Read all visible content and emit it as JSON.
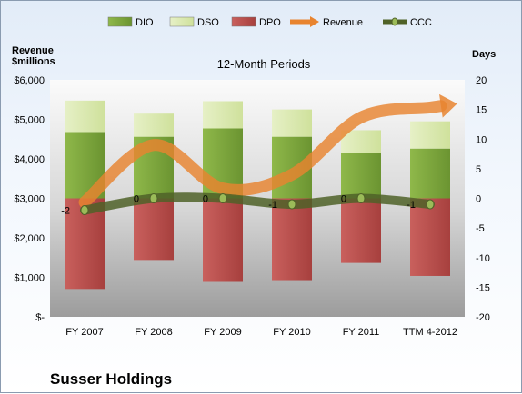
{
  "chart_data": {
    "type": "bar",
    "title": "12-Month Periods",
    "company": "Susser Holdings",
    "left_axis_title": [
      "Revenue",
      "$millions"
    ],
    "right_axis_title": "Days",
    "left_ticks": [
      "$-",
      "$1,000",
      "$2,000",
      "$3,000",
      "$4,000",
      "$5,000",
      "$6,000"
    ],
    "right_ticks": [
      "-20",
      "-15",
      "-10",
      "-5",
      "0",
      "5",
      "10",
      "15",
      "20"
    ],
    "ylim_left": [
      0,
      6000
    ],
    "ylim_right": [
      -20,
      20
    ],
    "categories": [
      "FY 2007",
      "FY 2008",
      "FY 2009",
      "FY 2010",
      "FY 2011",
      "TTM 4-2012"
    ],
    "series": [
      {
        "name": "DIO",
        "kind": "stacked-bar",
        "axis": "right",
        "values": [
          11.2,
          10.4,
          11.8,
          10.4,
          7.6,
          8.4
        ],
        "color": "#7aa33a"
      },
      {
        "name": "DSO",
        "kind": "stacked-bar",
        "axis": "right",
        "values": [
          5.3,
          3.9,
          4.6,
          4.6,
          3.9,
          4.6
        ],
        "color": "#d9e8b0"
      },
      {
        "name": "DPO",
        "kind": "stacked-bar",
        "axis": "right",
        "values": [
          -15.3,
          -10.4,
          -14.1,
          -13.8,
          -10.9,
          -13.1
        ],
        "color": "#c0504d"
      },
      {
        "name": "Revenue",
        "kind": "arrow-line",
        "axis": "left",
        "values": [
          2900,
          4350,
          3250,
          3600,
          5050,
          5300
        ],
        "color": "#e87d2f"
      },
      {
        "name": "CCC",
        "kind": "line",
        "axis": "right",
        "values": [
          -2,
          0,
          0,
          -1,
          0,
          -1
        ],
        "labels": [
          "-2",
          "0",
          "0",
          "-1",
          "0",
          "-1"
        ],
        "color": "#4f6228"
      }
    ],
    "legend": {
      "position": "top",
      "entries": [
        "DIO",
        "DSO",
        "DPO",
        "Revenue",
        "CCC"
      ]
    },
    "grid": false
  }
}
